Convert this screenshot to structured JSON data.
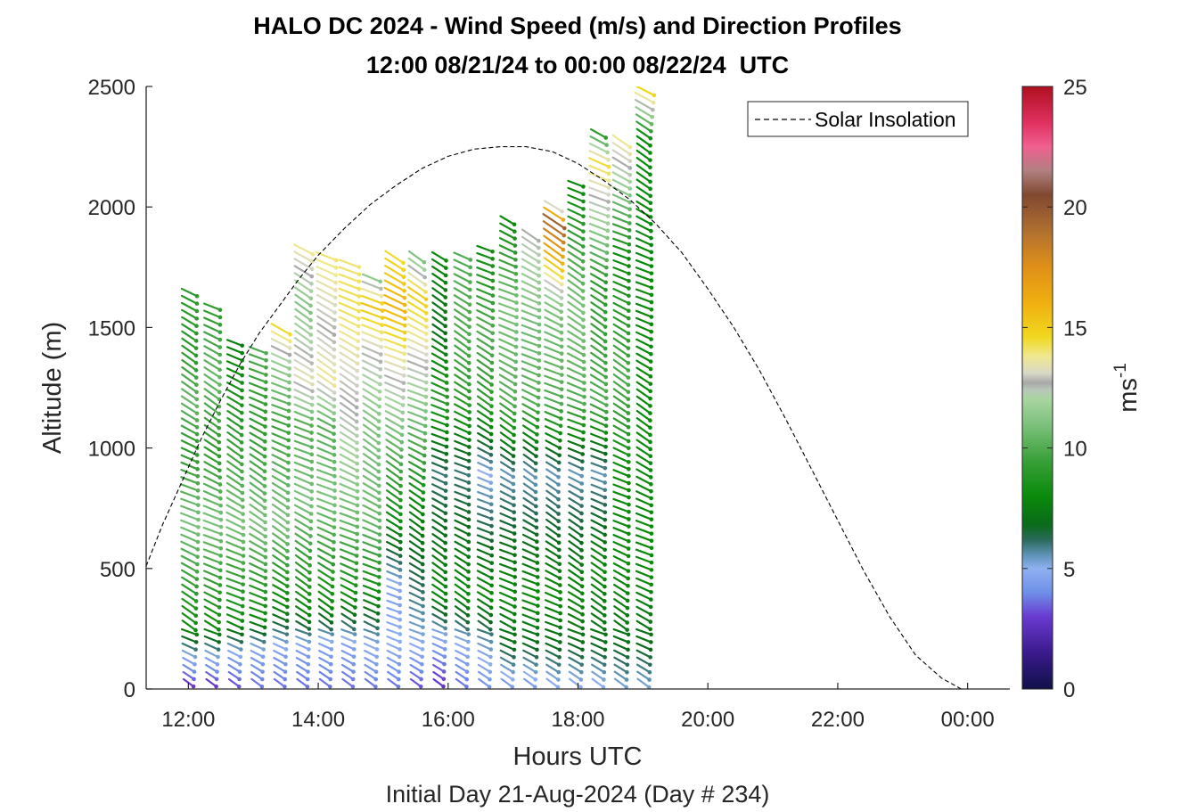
{
  "chart_data": {
    "type": "wind-barb-profile",
    "title": "HALO DC 2024 - Wind Speed (m/s) and Direction Profiles",
    "subtitle": "12:00 08/21/24 to 00:00 08/22/24  UTC",
    "xlabel": "Hours UTC",
    "xlabel2": "Initial Day 21-Aug-2024 (Day # 234)",
    "ylabel": "Altitude (m)",
    "xlim": [
      11.35,
      24.65
    ],
    "ylim": [
      0,
      2500
    ],
    "x_ticks": [
      {
        "value": 12,
        "label": "12:00"
      },
      {
        "value": 14,
        "label": "14:00"
      },
      {
        "value": 16,
        "label": "16:00"
      },
      {
        "value": 18,
        "label": "18:00"
      },
      {
        "value": 20,
        "label": "20:00"
      },
      {
        "value": 22,
        "label": "22:00"
      },
      {
        "value": 24,
        "label": "00:00"
      }
    ],
    "y_ticks": [
      {
        "value": 0,
        "label": "0"
      },
      {
        "value": 500,
        "label": "500"
      },
      {
        "value": 1000,
        "label": "1000"
      },
      {
        "value": 1500,
        "label": "1500"
      },
      {
        "value": 2000,
        "label": "2000"
      },
      {
        "value": 2500,
        "label": "2500"
      }
    ],
    "colorbar": {
      "label": "ms",
      "label_exponent": "-1",
      "range": [
        0,
        25
      ],
      "ticks": [
        {
          "value": 0,
          "label": "0"
        },
        {
          "value": 5,
          "label": "5"
        },
        {
          "value": 10,
          "label": "10"
        },
        {
          "value": 15,
          "label": "15"
        },
        {
          "value": 20,
          "label": "20"
        },
        {
          "value": 25,
          "label": "25"
        }
      ],
      "stops": [
        {
          "v": 0,
          "c": "#10104a"
        },
        {
          "v": 1.5,
          "c": "#3a1a8c"
        },
        {
          "v": 3,
          "c": "#6a3ad0"
        },
        {
          "v": 4,
          "c": "#6f8fe8"
        },
        {
          "v": 5,
          "c": "#8fb0f0"
        },
        {
          "v": 5.6,
          "c": "#5a90b0"
        },
        {
          "v": 6.2,
          "c": "#2a6a5a"
        },
        {
          "v": 6.8,
          "c": "#0a6a1a"
        },
        {
          "v": 8,
          "c": "#0a8a0a"
        },
        {
          "v": 9.5,
          "c": "#3aa03a"
        },
        {
          "v": 11,
          "c": "#7ec27e"
        },
        {
          "v": 12,
          "c": "#a8d4a0"
        },
        {
          "v": 12.4,
          "c": "#b8c8b8"
        },
        {
          "v": 12.7,
          "c": "#a8a8a8"
        },
        {
          "v": 13.1,
          "c": "#d8d8c8"
        },
        {
          "v": 13.8,
          "c": "#f0e890"
        },
        {
          "v": 14.6,
          "c": "#f0d820"
        },
        {
          "v": 16,
          "c": "#f0b010"
        },
        {
          "v": 17.5,
          "c": "#e09018"
        },
        {
          "v": 19,
          "c": "#b07030"
        },
        {
          "v": 20.5,
          "c": "#804830"
        },
        {
          "v": 21.5,
          "c": "#b08080"
        },
        {
          "v": 22.5,
          "c": "#f06090"
        },
        {
          "v": 23.5,
          "c": "#e03060"
        },
        {
          "v": 25,
          "c": "#b01020"
        }
      ]
    },
    "legend": {
      "location": "top-right",
      "entries": [
        {
          "label": "Solar Insolation",
          "style": "dashed black"
        }
      ]
    },
    "series": [
      {
        "name": "Solar Insolation",
        "type": "line",
        "style": "dashed",
        "x": [
          11.35,
          11.6,
          11.9,
          12.2,
          12.5,
          12.8,
          13.1,
          13.4,
          13.7,
          14.0,
          14.4,
          14.8,
          15.2,
          15.6,
          16.0,
          16.4,
          16.8,
          17.2,
          17.6,
          18.0,
          18.4,
          18.8,
          19.2,
          19.6,
          20.0,
          20.4,
          20.8,
          21.2,
          21.6,
          22.0,
          22.4,
          22.8,
          23.2,
          23.6,
          23.9,
          24.1,
          24.2,
          24.65
        ],
        "y": [
          510,
          680,
          860,
          1040,
          1200,
          1350,
          1480,
          1590,
          1700,
          1800,
          1910,
          2010,
          2090,
          2160,
          2210,
          2240,
          2250,
          2250,
          2230,
          2180,
          2110,
          2030,
          1930,
          1810,
          1660,
          1500,
          1320,
          1120,
          910,
          700,
          490,
          300,
          140,
          45,
          0,
          0,
          0,
          0
        ]
      }
    ],
    "wind_profiles": [
      {
        "time": 11.98,
        "top": 1650,
        "speeds": [
          [
            0,
            2.5
          ],
          [
            120,
            4.5
          ],
          [
            260,
            8
          ],
          [
            700,
            11
          ],
          [
            1000,
            9
          ],
          [
            1200,
            10.5
          ],
          [
            1400,
            9
          ],
          [
            1650,
            9
          ]
        ]
      },
      {
        "time": 12.33,
        "top": 1600,
        "speeds": [
          [
            0,
            2.5
          ],
          [
            120,
            4.5
          ],
          [
            260,
            8
          ],
          [
            700,
            11
          ],
          [
            1000,
            9
          ],
          [
            1300,
            10.5
          ],
          [
            1600,
            9
          ]
        ]
      },
      {
        "time": 12.68,
        "top": 1450,
        "speeds": [
          [
            0,
            3
          ],
          [
            140,
            4.5
          ],
          [
            280,
            8
          ],
          [
            700,
            11
          ],
          [
            1000,
            9.5
          ],
          [
            1450,
            7.5
          ]
        ]
      },
      {
        "time": 13.03,
        "top": 1430,
        "speeds": [
          [
            0,
            3.5
          ],
          [
            150,
            4.5
          ],
          [
            300,
            8
          ],
          [
            700,
            11
          ],
          [
            1100,
            9
          ],
          [
            1430,
            10
          ]
        ]
      },
      {
        "time": 13.38,
        "top": 1500,
        "speeds": [
          [
            0,
            3.5
          ],
          [
            160,
            4.5
          ],
          [
            330,
            7.5
          ],
          [
            700,
            11
          ],
          [
            1100,
            9.5
          ],
          [
            1350,
            11.5
          ],
          [
            1500,
            14.5
          ]
        ]
      },
      {
        "time": 13.73,
        "top": 1850,
        "speeds": [
          [
            0,
            3.5
          ],
          [
            170,
            4.5
          ],
          [
            340,
            8
          ],
          [
            800,
            11
          ],
          [
            1100,
            10
          ],
          [
            1300,
            13.5
          ],
          [
            1600,
            11
          ],
          [
            1850,
            14
          ]
        ]
      },
      {
        "time": 14.08,
        "top": 1800,
        "speeds": [
          [
            0,
            3.5
          ],
          [
            180,
            4.5
          ],
          [
            360,
            8
          ],
          [
            800,
            11
          ],
          [
            1100,
            10
          ],
          [
            1300,
            13.8
          ],
          [
            1500,
            12.7
          ],
          [
            1800,
            14
          ]
        ]
      },
      {
        "time": 14.43,
        "top": 1770,
        "speeds": [
          [
            0,
            3.5
          ],
          [
            180,
            4.5
          ],
          [
            380,
            8
          ],
          [
            700,
            10.5
          ],
          [
            1100,
            12.4
          ],
          [
            1350,
            13.2
          ],
          [
            1600,
            14.3
          ],
          [
            1770,
            14
          ]
        ]
      },
      {
        "time": 14.78,
        "top": 1720,
        "speeds": [
          [
            0,
            3.5
          ],
          [
            190,
            5
          ],
          [
            400,
            8
          ],
          [
            700,
            10.5
          ],
          [
            1100,
            11
          ],
          [
            1400,
            12.7
          ],
          [
            1600,
            15.5
          ],
          [
            1720,
            11
          ]
        ]
      },
      {
        "time": 15.13,
        "top": 1800,
        "speeds": [
          [
            0,
            3.5
          ],
          [
            190,
            5
          ],
          [
            400,
            4.5
          ],
          [
            700,
            8
          ],
          [
            1100,
            11
          ],
          [
            1400,
            13.8
          ],
          [
            1600,
            16
          ],
          [
            1800,
            14.5
          ]
        ]
      },
      {
        "time": 15.48,
        "top": 1800,
        "speeds": [
          [
            0,
            3
          ],
          [
            190,
            5
          ],
          [
            400,
            6
          ],
          [
            800,
            8
          ],
          [
            1100,
            10.5
          ],
          [
            1450,
            13.5
          ],
          [
            1650,
            15
          ],
          [
            1800,
            11
          ]
        ]
      },
      {
        "time": 15.83,
        "top": 1800,
        "speeds": [
          [
            0,
            2.5
          ],
          [
            200,
            4.5
          ],
          [
            400,
            8
          ],
          [
            900,
            6
          ],
          [
            1200,
            9
          ],
          [
            1500,
            7
          ],
          [
            1800,
            8
          ]
        ]
      },
      {
        "time": 16.18,
        "top": 1800,
        "speeds": [
          [
            0,
            3.5
          ],
          [
            200,
            5
          ],
          [
            400,
            8
          ],
          [
            900,
            6
          ],
          [
            1200,
            9
          ],
          [
            1500,
            10
          ],
          [
            1800,
            10
          ]
        ]
      },
      {
        "time": 16.53,
        "top": 1840,
        "speeds": [
          [
            0,
            4
          ],
          [
            200,
            5.5
          ],
          [
            400,
            8
          ],
          [
            900,
            5
          ],
          [
            1200,
            9
          ],
          [
            1500,
            10
          ],
          [
            1840,
            8
          ]
        ]
      },
      {
        "time": 16.88,
        "top": 1950,
        "speeds": [
          [
            0,
            4
          ],
          [
            200,
            7
          ],
          [
            400,
            8
          ],
          [
            900,
            5.5
          ],
          [
            1200,
            10
          ],
          [
            1600,
            11
          ],
          [
            1950,
            8
          ]
        ]
      },
      {
        "time": 17.23,
        "top": 1900,
        "speeds": [
          [
            0,
            4
          ],
          [
            200,
            7
          ],
          [
            400,
            8
          ],
          [
            900,
            5.5
          ],
          [
            1200,
            10
          ],
          [
            1600,
            11
          ],
          [
            1900,
            12.7
          ]
        ]
      },
      {
        "time": 17.58,
        "top": 2030,
        "speeds": [
          [
            0,
            4.5
          ],
          [
            200,
            7
          ],
          [
            400,
            8
          ],
          [
            900,
            5.5
          ],
          [
            1200,
            10
          ],
          [
            1600,
            11
          ],
          [
            1950,
            19.5
          ],
          [
            2030,
            11
          ]
        ]
      },
      {
        "time": 17.93,
        "top": 2100,
        "speeds": [
          [
            0,
            4.5
          ],
          [
            200,
            7
          ],
          [
            400,
            8
          ],
          [
            900,
            5.5
          ],
          [
            1200,
            10
          ],
          [
            1600,
            11
          ],
          [
            2100,
            8
          ]
        ]
      },
      {
        "time": 18.28,
        "top": 2330,
        "speeds": [
          [
            0,
            4.5
          ],
          [
            200,
            7
          ],
          [
            500,
            8
          ],
          [
            900,
            5.5
          ],
          [
            1200,
            10
          ],
          [
            1700,
            9
          ],
          [
            2200,
            14.5
          ],
          [
            2330,
            8
          ]
        ]
      },
      {
        "time": 18.63,
        "top": 2300,
        "speeds": [
          [
            0,
            5
          ],
          [
            200,
            7
          ],
          [
            500,
            8
          ],
          [
            900,
            8
          ],
          [
            1300,
            10
          ],
          [
            1800,
            8
          ],
          [
            2300,
            14
          ]
        ]
      },
      {
        "time": 18.98,
        "top": 2500,
        "speeds": [
          [
            0,
            5
          ],
          [
            200,
            7
          ],
          [
            500,
            8
          ],
          [
            900,
            8
          ],
          [
            1300,
            8
          ],
          [
            1800,
            8
          ],
          [
            2300,
            8
          ],
          [
            2500,
            15
          ]
        ]
      }
    ]
  }
}
